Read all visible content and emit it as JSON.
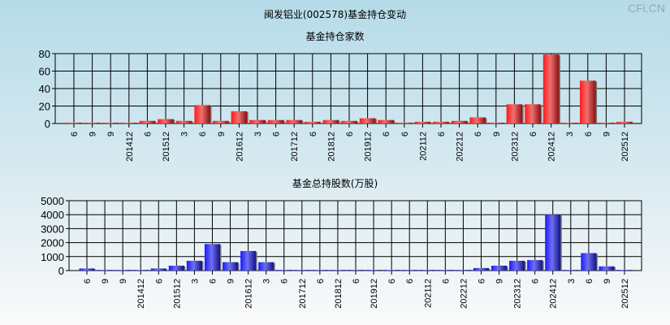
{
  "title": "闽发铝业(002578)基金持仓变动",
  "logo": "CFi.CN",
  "chart_data": [
    {
      "type": "bar",
      "title": "基金持仓家数",
      "categories": [
        "6",
        "9",
        "9",
        "201412",
        "6",
        "201512",
        "3",
        "6",
        "9",
        "201612",
        "3",
        "6",
        "201712",
        "6",
        "201812",
        "6",
        "201912",
        "6",
        "6",
        "202112",
        "6",
        "202212",
        "6",
        "9",
        "202312",
        "6",
        "202412",
        "3",
        "6",
        "9",
        "202512"
      ],
      "values": [
        1,
        1,
        1,
        1,
        3,
        5,
        3,
        21,
        3,
        14,
        4,
        4,
        4,
        2,
        4,
        3,
        6,
        4,
        1,
        2,
        2,
        3,
        7,
        1,
        22,
        22,
        79,
        1,
        49,
        1,
        2
      ],
      "yticks": [
        0,
        20,
        40,
        60,
        80
      ],
      "ylim": [
        0,
        80
      ],
      "grid": true,
      "color": "#e8202a"
    },
    {
      "type": "bar",
      "title": "基金总持股数(万股)",
      "categories": [
        "6",
        "9",
        "9",
        "201412",
        "6",
        "201512",
        "3",
        "6",
        "9",
        "201612",
        "3",
        "6",
        "201712",
        "6",
        "201812",
        "6",
        "201912",
        "6",
        "6",
        "202112",
        "6",
        "202212",
        "6",
        "9",
        "202312",
        "6",
        "202412",
        "3",
        "6",
        "9",
        "202512"
      ],
      "values": [
        150,
        50,
        50,
        50,
        150,
        350,
        700,
        1900,
        600,
        1400,
        600,
        50,
        50,
        50,
        50,
        50,
        50,
        50,
        50,
        50,
        50,
        50,
        180,
        350,
        700,
        750,
        4000,
        50,
        1250,
        300,
        50
      ],
      "yticks": [
        0,
        1000,
        2000,
        3000,
        4000,
        5000
      ],
      "ylim": [
        0,
        5000
      ],
      "grid": true,
      "color": "#2020e0"
    }
  ]
}
